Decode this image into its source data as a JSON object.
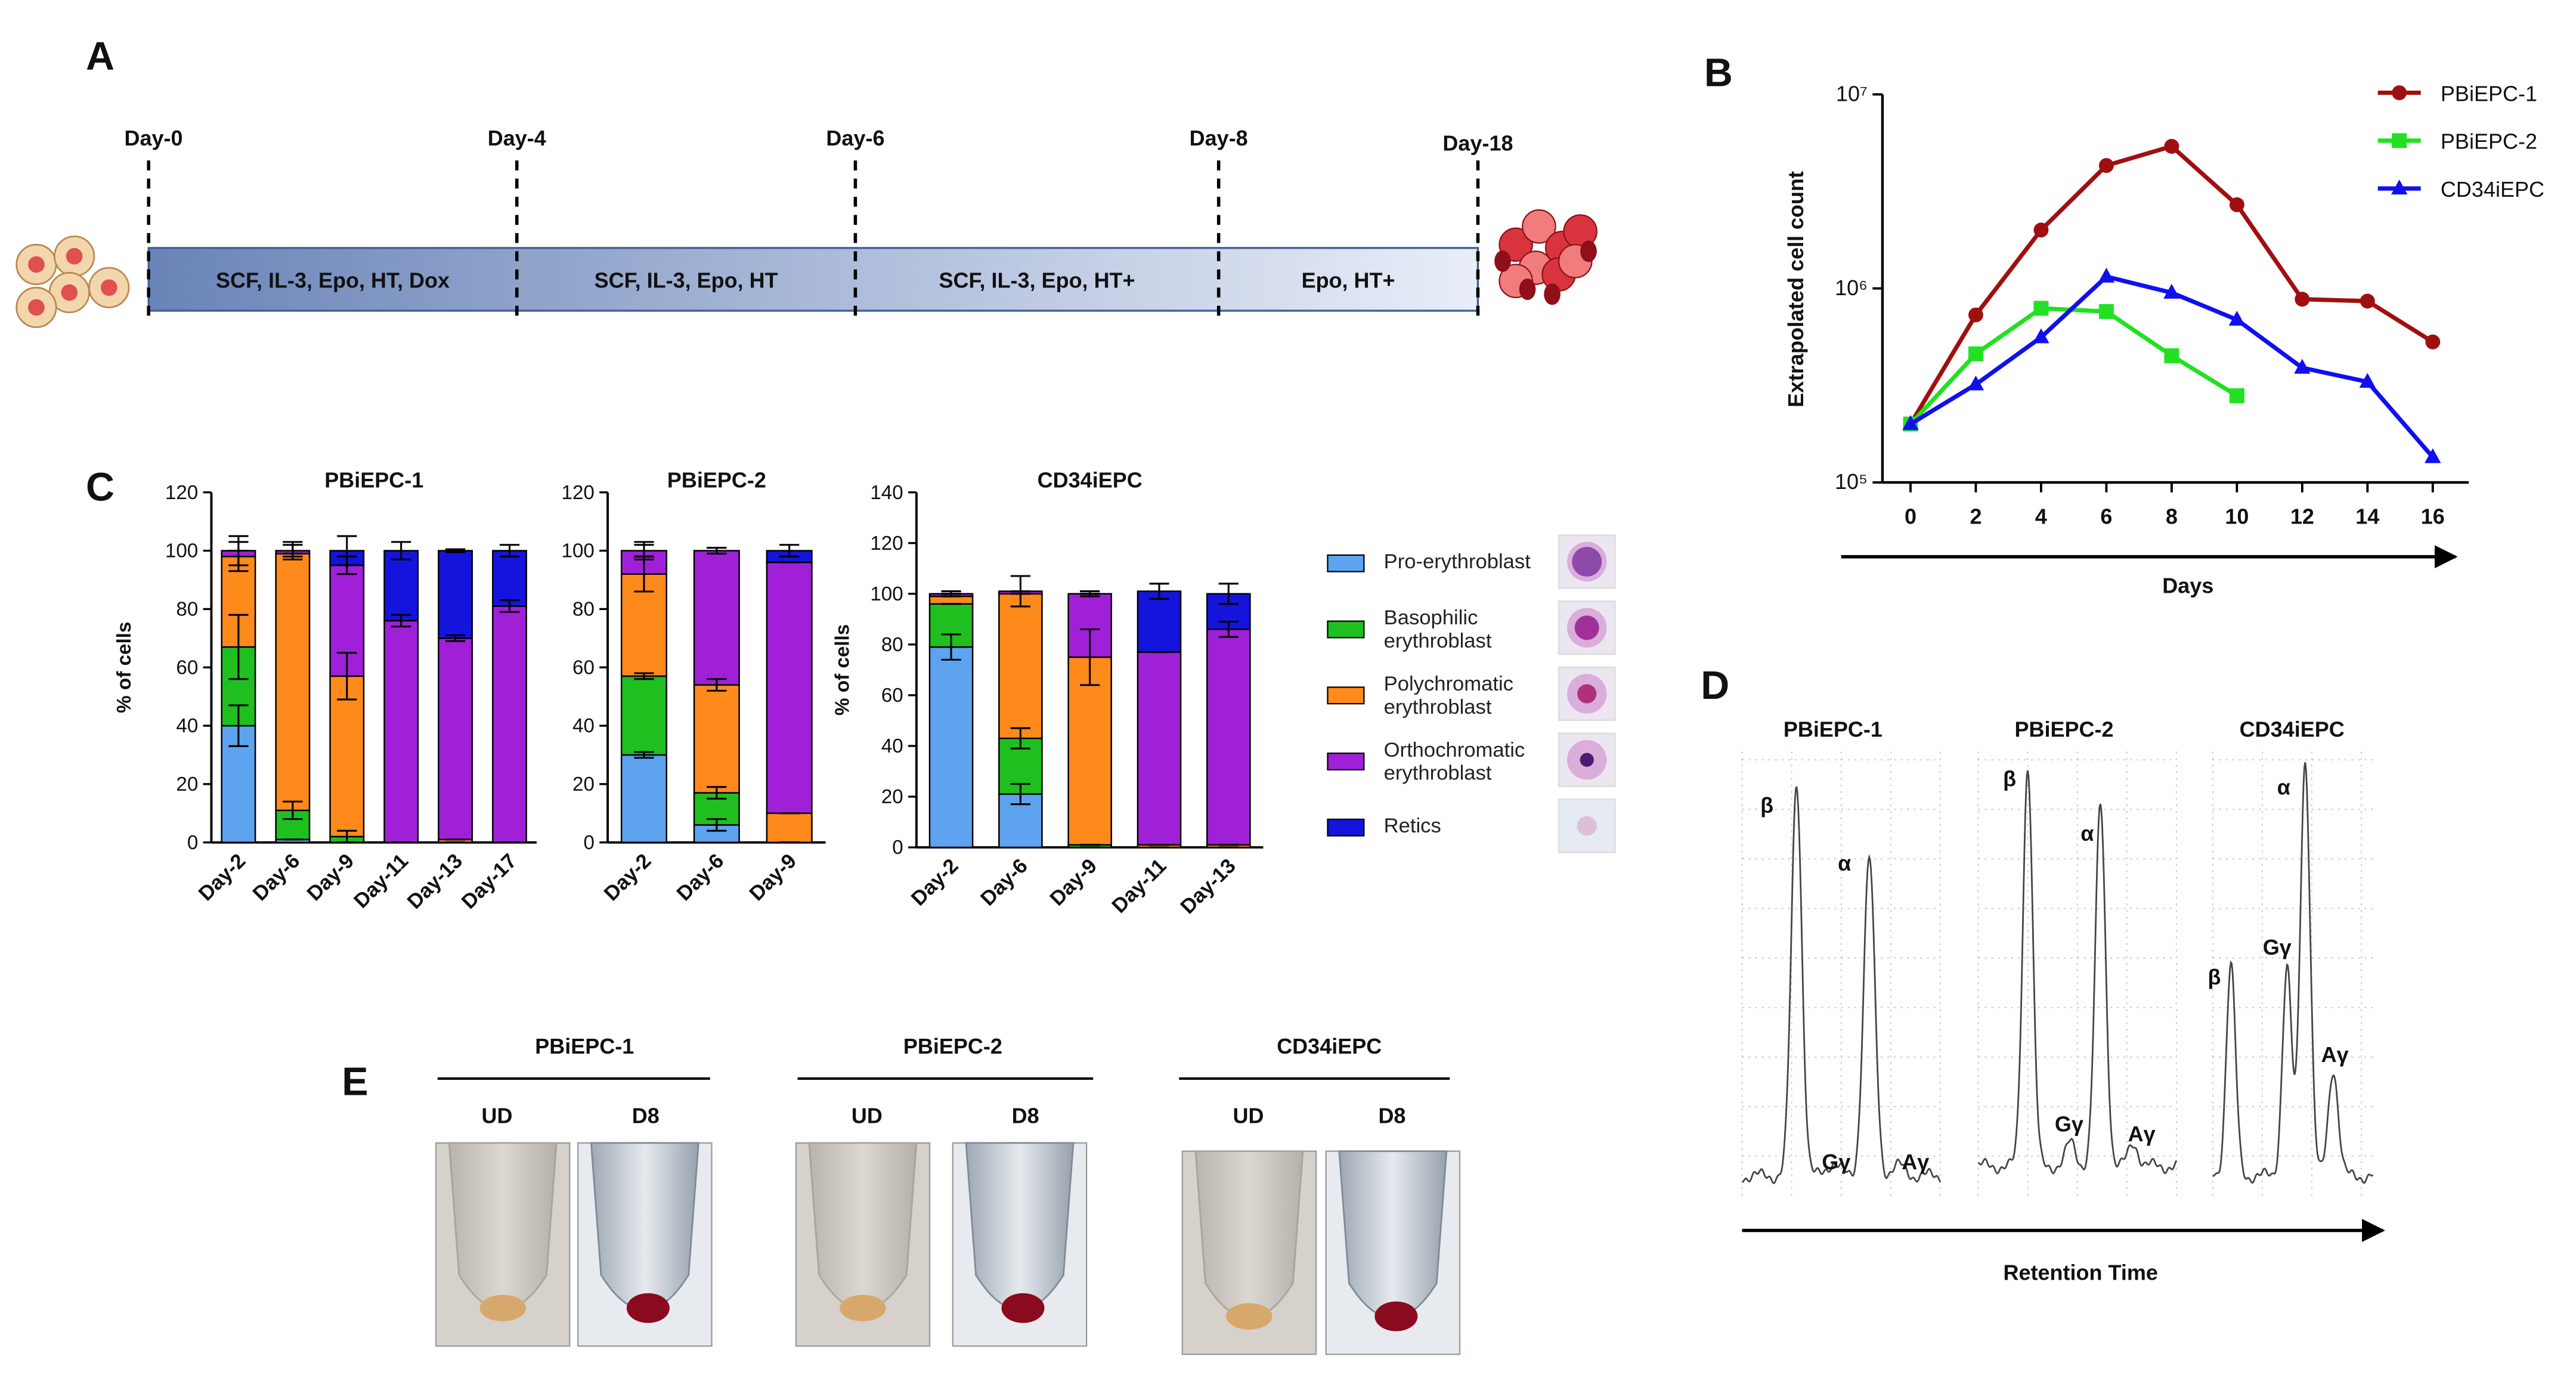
{
  "panels": [
    "A",
    "B",
    "C",
    "D",
    "E"
  ],
  "timeline": {
    "days": [
      "Day-0",
      "Day-4",
      "Day-6",
      "Day-8",
      "Day-18"
    ],
    "phases": [
      "SCF, IL-3, Epo, HT, Dox",
      "SCF, IL-3, Epo, HT",
      "SCF, IL-3, Epo, HT+",
      "Epo, HT+"
    ]
  },
  "chart_data": [
    {
      "type": "line",
      "log_y": true,
      "x": [
        0,
        2,
        4,
        6,
        8,
        10,
        12,
        14,
        16
      ],
      "xlim": [
        -0.86,
        17.1
      ],
      "xticks": [
        0,
        2,
        4,
        6,
        8,
        10,
        12,
        14,
        16
      ],
      "ylim": [
        100000,
        10000000
      ],
      "yticks": [
        {
          "value": 100000,
          "label": "10⁵"
        },
        {
          "value": 1000000,
          "label": "10⁶"
        },
        {
          "value": 10000000,
          "label": "10⁷"
        }
      ],
      "xlabel": "Days",
      "ylabel": "Extrapolated cell count",
      "legend": "upper right",
      "series": [
        {
          "name": "PBiEPC-1",
          "color": "#a00f0f",
          "marker": "circle",
          "values": [
            200000,
            730000,
            2000000,
            4300000,
            5400000,
            2700000,
            880000,
            860000,
            530000
          ]
        },
        {
          "name": "PBiEPC-2",
          "color": "#22e022",
          "marker": "square",
          "values": [
            200000,
            460000,
            790000,
            760000,
            450000,
            280000,
            null,
            null,
            null
          ]
        },
        {
          "name": "CD34iEPC",
          "color": "#1010ee",
          "marker": "triangle",
          "values": [
            200000,
            320000,
            560000,
            1150000,
            950000,
            690000,
            390000,
            330000,
            135000
          ]
        }
      ]
    },
    {
      "type": "bar",
      "stacked": true,
      "title": "PBiEPC-1",
      "ylabel": "% of cells",
      "categories": [
        "Day-2",
        "Day-6",
        "Day-9",
        "Day-11",
        "Day-13",
        "Day-17"
      ],
      "ylim": [
        0,
        120
      ],
      "yticks": [
        0,
        20,
        40,
        60,
        80,
        100,
        120
      ],
      "series": [
        {
          "name": "Pro-erythroblast",
          "color": "#5ea3f0",
          "values": [
            40,
            1,
            0,
            0,
            0,
            0
          ],
          "errors": [
            7,
            0,
            0,
            0,
            0,
            0
          ]
        },
        {
          "name": "Basophilic erythroblast",
          "color": "#1fbf1f",
          "values": [
            27,
            10,
            2,
            0,
            0,
            0
          ],
          "errors": [
            11,
            3,
            2,
            0,
            0,
            0
          ]
        },
        {
          "name": "Polychromatic erythroblast",
          "color": "#ff8a1c",
          "values": [
            31,
            88,
            55,
            0,
            1,
            0
          ],
          "errors": [
            5,
            0,
            8,
            0,
            0,
            0
          ]
        },
        {
          "name": "Orthochromatic erythroblast",
          "color": "#a020d8",
          "values": [
            2,
            1,
            38,
            76,
            69,
            81
          ],
          "errors": [
            0,
            2,
            3,
            2,
            1,
            2
          ]
        },
        {
          "name": "Retics",
          "color": "#1414dc",
          "values": [
            0,
            0,
            5,
            24,
            30,
            19
          ],
          "errors": [
            5,
            3,
            5,
            3,
            0.5,
            2
          ]
        }
      ]
    },
    {
      "type": "bar",
      "stacked": true,
      "title": "PBiEPC-2",
      "categories": [
        "Day-2",
        "Day-6",
        "Day-9"
      ],
      "ylim": [
        0,
        120
      ],
      "yticks": [
        0,
        20,
        40,
        60,
        80,
        100,
        120
      ],
      "series": [
        {
          "values": [
            30,
            6,
            0
          ],
          "errors": [
            1,
            2,
            0
          ]
        },
        {
          "values": [
            27,
            11,
            0
          ],
          "errors": [
            1,
            2,
            0
          ]
        },
        {
          "values": [
            35,
            37,
            10
          ],
          "errors": [
            6,
            2,
            0
          ]
        },
        {
          "values": [
            8,
            46,
            86
          ],
          "errors": [
            2,
            1,
            0
          ]
        },
        {
          "values": [
            0,
            0,
            4
          ],
          "errors": [
            3,
            1,
            2
          ]
        }
      ]
    },
    {
      "type": "bar",
      "stacked": true,
      "title": "CD34iEPC",
      "ylabel": "% of cells",
      "categories": [
        "Day-2",
        "Day-6",
        "Day-9",
        "Day-11",
        "Day-13"
      ],
      "ylim": [
        0,
        140
      ],
      "yticks": [
        0,
        20,
        40,
        60,
        80,
        100,
        120,
        140
      ],
      "series": [
        {
          "values": [
            79,
            21,
            0,
            0,
            0
          ],
          "errors": [
            5,
            4,
            0,
            0,
            0
          ]
        },
        {
          "values": [
            17,
            22,
            1,
            0,
            0
          ],
          "errors": [
            0,
            4,
            0,
            0,
            0
          ]
        },
        {
          "values": [
            3,
            57,
            74,
            1,
            1
          ],
          "errors": [
            0,
            0,
            11,
            0,
            0
          ]
        },
        {
          "values": [
            1,
            1,
            25,
            76,
            85
          ],
          "errors": [
            1,
            6,
            1,
            0,
            3
          ]
        },
        {
          "values": [
            0,
            0,
            0,
            24,
            14
          ],
          "errors": [
            0,
            0,
            0,
            3,
            4
          ]
        }
      ]
    }
  ],
  "chromatograms": {
    "x_label": "Retention Time",
    "traces": [
      {
        "title": "PBiEPC-1",
        "peaks": [
          "β",
          "α",
          "Gγ",
          "Aγ"
        ]
      },
      {
        "title": "PBiEPC-2",
        "peaks": [
          "β",
          "α",
          "Gγ",
          "Aγ"
        ]
      },
      {
        "title": "CD34iEPC",
        "peaks": [
          "β",
          "α",
          "Gγ",
          "Aγ"
        ]
      }
    ]
  },
  "tubes": {
    "groups": [
      {
        "title": "PBiEPC-1",
        "labels": [
          "UD",
          "D8"
        ]
      },
      {
        "title": "PBiEPC-2",
        "labels": [
          "UD",
          "D8"
        ]
      },
      {
        "title": "CD34iEPC",
        "labels": [
          "UD",
          "D8"
        ]
      }
    ]
  }
}
